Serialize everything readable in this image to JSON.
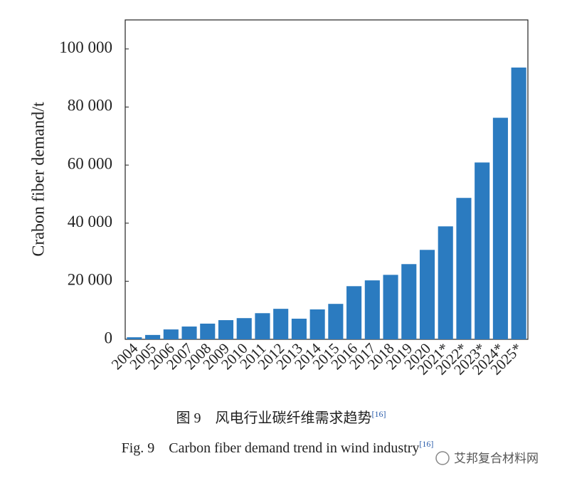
{
  "chart_data": {
    "type": "bar",
    "y_label": "Crabon fiber demand/t",
    "caption_cn": "图 9　风电行业碳纤维需求趋势",
    "caption_en": "Fig. 9　Carbon fiber demand trend in wind industry",
    "reference": "[16]",
    "watermark": "艾邦复合材料网",
    "categories": [
      "2004",
      "2005",
      "2006",
      "2007",
      "2008",
      "2009",
      "2010",
      "2011",
      "2012",
      "2013",
      "2014",
      "2015",
      "2016",
      "2017",
      "2018",
      "2019",
      "2020",
      "2021*",
      "2022*",
      "2023*",
      "2024*",
      "2025*"
    ],
    "values": [
      700,
      1500,
      3400,
      4400,
      5400,
      6600,
      7300,
      9000,
      10500,
      7100,
      10300,
      12200,
      18300,
      20300,
      22200,
      25900,
      30800,
      38900,
      48700,
      60900,
      76300,
      93600
    ],
    "color": "#2b7bc0",
    "ylim": [
      0,
      110000
    ],
    "yticks": [
      0,
      {
        "value": 20000,
        "label": "20 000"
      },
      {
        "value": 40000,
        "label": "40 000"
      },
      {
        "value": 60000,
        "label": "60 000"
      },
      {
        "value": 80000,
        "label": "80 000"
      },
      {
        "value": 100000,
        "label": "100 000"
      }
    ],
    "grid": false
  }
}
